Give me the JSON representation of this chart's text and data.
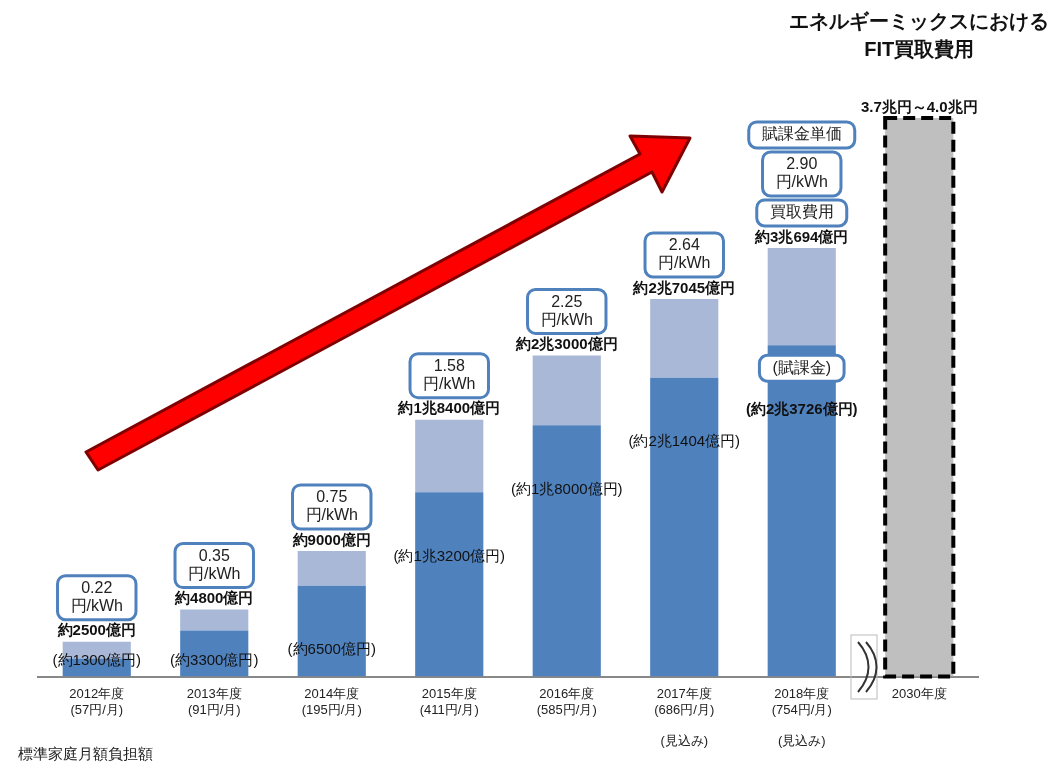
{
  "chart_data": {
    "type": "bar",
    "title": "エネルギーミックスにおける\nFIT買取費用",
    "stacked": true,
    "tick_labels": "x",
    "grid": false,
    "legend": false,
    "categories": [
      "2012年度\n(57円/月)",
      "2013年度\n(91円/月)",
      "2014年度\n(195円/月)",
      "2015年度\n(411円/月)",
      "2016年度\n(585円/月)",
      "2017年度\n(686円/月)\n\n(見込み)",
      "2018年度\n(754円/月)\n\n(見込み)",
      "2030年度"
    ],
    "series": [
      {
        "color": "#4f81bd",
        "values": [
          1300,
          3300,
          6500,
          13200,
          18000,
          21404,
          23726,
          null
        ],
        "value_labels": [
          "(約1300億円)",
          "(約3300億円)",
          "(約6500億円)",
          "(約1兆3200億円)",
          "(約1兆8000億円)",
          "(約2兆1404億円)",
          "(約2兆3726億円)",
          null
        ]
      },
      {
        "color": "#a9b8d6",
        "values": [
          1200,
          1500,
          2500,
          5200,
          5000,
          5641,
          6968,
          null
        ]
      },
      {
        "color": "#bfbfbf",
        "line_style": "dashed",
        "values": [
          null,
          null,
          null,
          null,
          null,
          null,
          null,
          40000
        ]
      }
    ],
    "totals": [
      "約2500億円",
      "約4800億円",
      "約9000億円",
      "約1兆8400億円",
      "約2兆3000億円",
      "約2兆7045億円",
      "約3兆694億円",
      "3.7兆円～4.0兆円"
    ],
    "annotations": [
      "標準家庭月額負担額",
      {
        "text": "0.22\n円/kWh",
        "x": "2012年度\n(57円/月)",
        "y": 2500
      },
      {
        "text": "0.35\n円/kWh",
        "x": "2013年度\n(91円/月)",
        "y": 4800
      },
      {
        "text": "0.75\n円/kWh",
        "x": "2014年度\n(195円/月)",
        "y": 9000
      },
      {
        "text": "1.58\n円/kWh",
        "x": "2015年度\n(411円/月)",
        "y": 18400
      },
      {
        "text": "2.25\n円/kWh",
        "x": "2016年度\n(585円/月)",
        "y": 23000
      },
      {
        "text": "2.64\n円/kWh",
        "x": "2017年度\n(686円/月)\n\n(見込み)",
        "y": 27045
      },
      {
        "text": "(賦課金)",
        "x": "2018年度\n(754円/月)\n\n(見込み)",
        "y": 23726
      },
      {
        "text": "買取費用",
        "x": "2018年度\n(754円/月)\n\n(見込み)",
        "y": 30694
      },
      "2.90\n円/kWh",
      "賦課金単価"
    ]
  }
}
